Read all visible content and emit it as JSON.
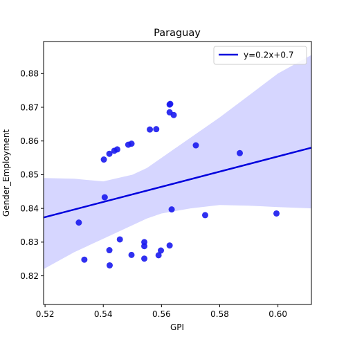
{
  "chart_data": {
    "type": "scatter",
    "title": "Paraguay",
    "xlabel": "GPI",
    "ylabel": "Gender_Employment",
    "xlim": [
      0.5195,
      0.6115
    ],
    "ylim": [
      0.8115,
      0.8895
    ],
    "xticks": [
      "0.52",
      "0.54",
      "0.56",
      "0.58",
      "0.60"
    ],
    "xtick_values": [
      0.52,
      0.54,
      0.56,
      0.58,
      0.6
    ],
    "yticks": [
      "0.82",
      "0.83",
      "0.84",
      "0.85",
      "0.86",
      "0.87",
      "0.88"
    ],
    "ytick_values": [
      0.82,
      0.83,
      0.84,
      0.85,
      0.86,
      0.87,
      0.88
    ],
    "grid": false,
    "legend": {
      "position": "top-right",
      "entries": [
        "y=0.2x+0.7"
      ]
    },
    "colors": {
      "points": "#1a1aee",
      "line": "#0000dd",
      "band": "#d6d6ff"
    },
    "points": [
      {
        "x": 0.5316,
        "y": 0.8358
      },
      {
        "x": 0.5335,
        "y": 0.8248
      },
      {
        "x": 0.5402,
        "y": 0.8545
      },
      {
        "x": 0.5405,
        "y": 0.8433
      },
      {
        "x": 0.5421,
        "y": 0.8562
      },
      {
        "x": 0.5438,
        "y": 0.8571
      },
      {
        "x": 0.5448,
        "y": 0.8575
      },
      {
        "x": 0.5421,
        "y": 0.8276
      },
      {
        "x": 0.5422,
        "y": 0.8231
      },
      {
        "x": 0.5457,
        "y": 0.8308
      },
      {
        "x": 0.5486,
        "y": 0.8589
      },
      {
        "x": 0.5497,
        "y": 0.8592
      },
      {
        "x": 0.5497,
        "y": 0.8262
      },
      {
        "x": 0.5541,
        "y": 0.83
      },
      {
        "x": 0.5541,
        "y": 0.8288
      },
      {
        "x": 0.5541,
        "y": 0.8251
      },
      {
        "x": 0.556,
        "y": 0.8634
      },
      {
        "x": 0.5582,
        "y": 0.8635
      },
      {
        "x": 0.559,
        "y": 0.8261
      },
      {
        "x": 0.5598,
        "y": 0.8275
      },
      {
        "x": 0.5628,
        "y": 0.8708
      },
      {
        "x": 0.563,
        "y": 0.871
      },
      {
        "x": 0.5628,
        "y": 0.8685
      },
      {
        "x": 0.5642,
        "y": 0.8677
      },
      {
        "x": 0.5628,
        "y": 0.829
      },
      {
        "x": 0.5635,
        "y": 0.8397
      },
      {
        "x": 0.5718,
        "y": 0.8587
      },
      {
        "x": 0.575,
        "y": 0.838
      },
      {
        "x": 0.5869,
        "y": 0.8564
      },
      {
        "x": 0.5995,
        "y": 0.8385
      }
    ],
    "regression_line": {
      "x": [
        0.5195,
        0.6115
      ],
      "y": [
        0.8373,
        0.858
      ]
    },
    "confidence_band": {
      "x": [
        0.5195,
        0.53,
        0.54,
        0.55,
        0.555,
        0.56,
        0.57,
        0.58,
        0.59,
        0.6,
        0.6115
      ],
      "upper": [
        0.849,
        0.8488,
        0.848,
        0.85,
        0.852,
        0.855,
        0.861,
        0.867,
        0.8735,
        0.88,
        0.8855
      ],
      "lower": [
        0.822,
        0.827,
        0.831,
        0.835,
        0.837,
        0.8385,
        0.84,
        0.841,
        0.8408,
        0.8404,
        0.84
      ]
    }
  }
}
